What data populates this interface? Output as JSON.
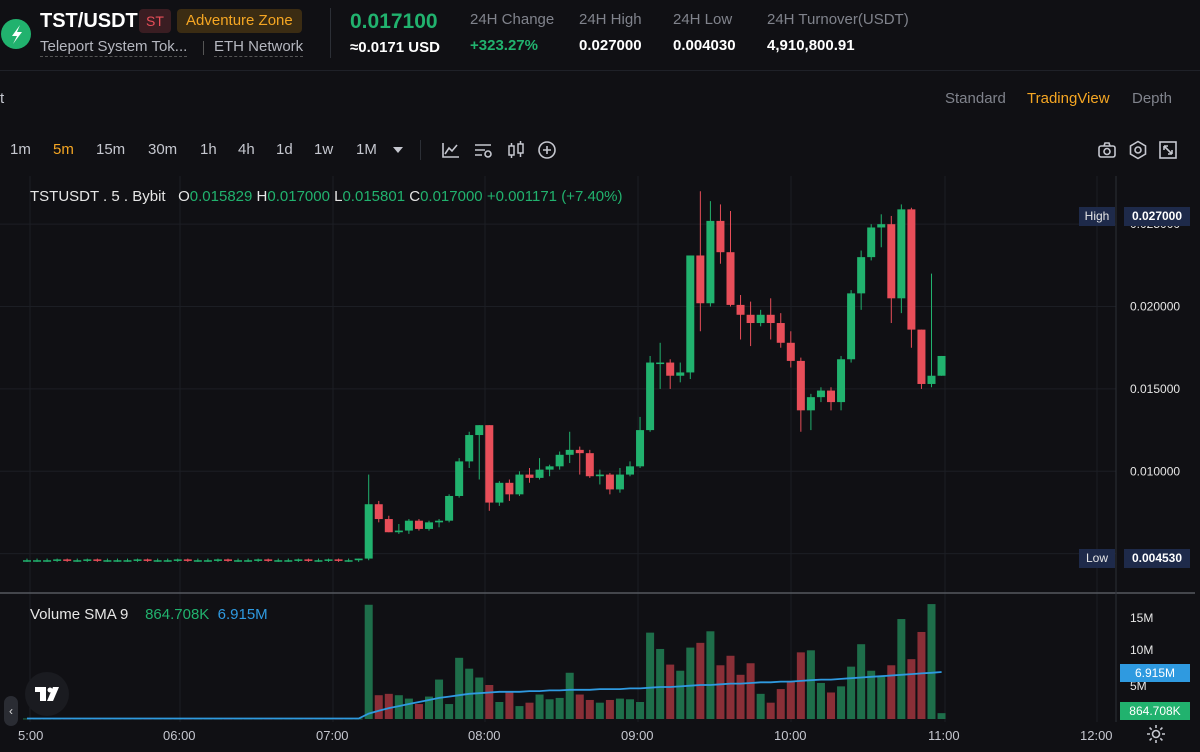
{
  "header": {
    "pair": "TST/USDT",
    "symbol_badge": "ST",
    "zone_badge": "Adventure Zone",
    "full_name": "Teleport System Tok...",
    "network": "ETH Network",
    "last_price": "0.017100",
    "usd_price": "≈0.0171 USD",
    "stats": [
      {
        "label": "24H Change",
        "value": "+323.27%"
      },
      {
        "label": "24H High",
        "value": "0.027000"
      },
      {
        "label": "24H Low",
        "value": "0.004030"
      },
      {
        "label": "24H Turnover(USDT)",
        "value": "4,910,800.91"
      }
    ]
  },
  "panel_left_char": "t",
  "view_tabs": [
    "Standard",
    "TradingView",
    "Depth"
  ],
  "active_view": "TradingView",
  "timeframes": [
    "1m",
    "5m",
    "15m",
    "30m",
    "1h",
    "4h",
    "1d",
    "1w",
    "1M"
  ],
  "active_timeframe": "5m",
  "legend": {
    "symbol": "TSTUSDT . 5 . Bybit",
    "o_label": "O",
    "o": "0.015829",
    "h_label": "H",
    "h": "0.017000",
    "l_label": "L",
    "l": "0.015801",
    "c_label": "C",
    "c": "0.017000",
    "change": "+0.001171 (+7.40%)"
  },
  "volume_legend": {
    "name": "Volume SMA 9",
    "volume": "864.708K",
    "sma": "6.915M"
  },
  "markers": {
    "high_label": "High",
    "high_value": "0.027000",
    "low_label": "Low",
    "low_value": "0.004530"
  },
  "volume_axis": {
    "labels": [
      "15M",
      "10M",
      "5M"
    ],
    "sma_tag": "6.915M",
    "vol_tag": "864.708K"
  },
  "colors": {
    "up": "#21b26e",
    "down": "#e84e59",
    "accent": "#f5a623",
    "sma": "#2f9ae0",
    "bg": "#101014"
  },
  "chart_data": {
    "type": "candlestick",
    "price_axis": {
      "ticks": [
        "0.025000",
        "0.020000",
        "0.015000",
        "0.010000",
        "0.005000"
      ],
      "range": [
        0.0034,
        0.0275
      ]
    },
    "x_tick_labels": [
      "5:00",
      "06:00",
      "07:00",
      "08:00",
      "09:00",
      "10:00",
      "11:00",
      "12:00"
    ],
    "candles": [
      {
        "o": 0.0046,
        "h": 0.0047,
        "l": 0.0045,
        "c": 0.0046
      },
      {
        "o": 0.0046,
        "h": 0.0047,
        "l": 0.0045,
        "c": 0.0046
      },
      {
        "o": 0.0046,
        "h": 0.0047,
        "l": 0.0045,
        "c": 0.0046
      },
      {
        "o": 0.0046,
        "h": 0.0047,
        "l": 0.0045,
        "c": 0.00465
      },
      {
        "o": 0.00465,
        "h": 0.0047,
        "l": 0.0045,
        "c": 0.0046
      },
      {
        "o": 0.0046,
        "h": 0.0047,
        "l": 0.0045,
        "c": 0.0046
      },
      {
        "o": 0.0046,
        "h": 0.0047,
        "l": 0.0045,
        "c": 0.00465
      },
      {
        "o": 0.00465,
        "h": 0.0047,
        "l": 0.0045,
        "c": 0.0046
      },
      {
        "o": 0.0046,
        "h": 0.0047,
        "l": 0.0045,
        "c": 0.0046
      },
      {
        "o": 0.0046,
        "h": 0.0047,
        "l": 0.0045,
        "c": 0.0046
      },
      {
        "o": 0.0046,
        "h": 0.0047,
        "l": 0.0045,
        "c": 0.0046
      },
      {
        "o": 0.0046,
        "h": 0.0047,
        "l": 0.0045,
        "c": 0.00465
      },
      {
        "o": 0.00465,
        "h": 0.0047,
        "l": 0.0045,
        "c": 0.0046
      },
      {
        "o": 0.0046,
        "h": 0.0047,
        "l": 0.0045,
        "c": 0.0046
      },
      {
        "o": 0.0046,
        "h": 0.0047,
        "l": 0.0045,
        "c": 0.0046
      },
      {
        "o": 0.0046,
        "h": 0.0047,
        "l": 0.0045,
        "c": 0.00465
      },
      {
        "o": 0.00465,
        "h": 0.0047,
        "l": 0.0045,
        "c": 0.0046
      },
      {
        "o": 0.0046,
        "h": 0.0047,
        "l": 0.0045,
        "c": 0.0046
      },
      {
        "o": 0.0046,
        "h": 0.0047,
        "l": 0.0045,
        "c": 0.0046
      },
      {
        "o": 0.0046,
        "h": 0.0047,
        "l": 0.0045,
        "c": 0.00465
      },
      {
        "o": 0.00465,
        "h": 0.0047,
        "l": 0.0045,
        "c": 0.0046
      },
      {
        "o": 0.0046,
        "h": 0.0047,
        "l": 0.0045,
        "c": 0.0046
      },
      {
        "o": 0.0046,
        "h": 0.0047,
        "l": 0.0045,
        "c": 0.0046
      },
      {
        "o": 0.0046,
        "h": 0.0047,
        "l": 0.0045,
        "c": 0.00465
      },
      {
        "o": 0.00465,
        "h": 0.0047,
        "l": 0.0045,
        "c": 0.0046
      },
      {
        "o": 0.0046,
        "h": 0.0047,
        "l": 0.0045,
        "c": 0.0046
      },
      {
        "o": 0.0046,
        "h": 0.0047,
        "l": 0.0045,
        "c": 0.0046
      },
      {
        "o": 0.0046,
        "h": 0.0047,
        "l": 0.0045,
        "c": 0.00465
      },
      {
        "o": 0.00465,
        "h": 0.0047,
        "l": 0.0045,
        "c": 0.0046
      },
      {
        "o": 0.0046,
        "h": 0.0047,
        "l": 0.0045,
        "c": 0.0046
      },
      {
        "o": 0.0046,
        "h": 0.0047,
        "l": 0.0045,
        "c": 0.00465
      },
      {
        "o": 0.00465,
        "h": 0.0047,
        "l": 0.0045,
        "c": 0.0046
      },
      {
        "o": 0.0046,
        "h": 0.0047,
        "l": 0.0045,
        "c": 0.0046
      },
      {
        "o": 0.0046,
        "h": 0.0047,
        "l": 0.0045,
        "c": 0.0047
      },
      {
        "o": 0.0047,
        "h": 0.0098,
        "l": 0.0046,
        "c": 0.008
      },
      {
        "o": 0.008,
        "h": 0.0082,
        "l": 0.0069,
        "c": 0.0071
      },
      {
        "o": 0.0071,
        "h": 0.0073,
        "l": 0.0063,
        "c": 0.0063
      },
      {
        "o": 0.0063,
        "h": 0.0068,
        "l": 0.0062,
        "c": 0.0064
      },
      {
        "o": 0.0064,
        "h": 0.0071,
        "l": 0.0062,
        "c": 0.007
      },
      {
        "o": 0.007,
        "h": 0.0071,
        "l": 0.0064,
        "c": 0.0065
      },
      {
        "o": 0.0065,
        "h": 0.007,
        "l": 0.0064,
        "c": 0.0069
      },
      {
        "o": 0.0069,
        "h": 0.0071,
        "l": 0.0066,
        "c": 0.007
      },
      {
        "o": 0.007,
        "h": 0.0086,
        "l": 0.0069,
        "c": 0.0085
      },
      {
        "o": 0.0085,
        "h": 0.0108,
        "l": 0.0084,
        "c": 0.0106
      },
      {
        "o": 0.0106,
        "h": 0.0124,
        "l": 0.0102,
        "c": 0.0122
      },
      {
        "o": 0.0122,
        "h": 0.0128,
        "l": 0.0095,
        "c": 0.0128
      },
      {
        "o": 0.0128,
        "h": 0.0128,
        "l": 0.0076,
        "c": 0.0081
      },
      {
        "o": 0.0081,
        "h": 0.0094,
        "l": 0.0079,
        "c": 0.0093
      },
      {
        "o": 0.0093,
        "h": 0.0095,
        "l": 0.0082,
        "c": 0.0086
      },
      {
        "o": 0.0086,
        "h": 0.01,
        "l": 0.0085,
        "c": 0.0098
      },
      {
        "o": 0.0098,
        "h": 0.0102,
        "l": 0.0093,
        "c": 0.0096
      },
      {
        "o": 0.0096,
        "h": 0.0108,
        "l": 0.0095,
        "c": 0.0101
      },
      {
        "o": 0.0101,
        "h": 0.0104,
        "l": 0.0097,
        "c": 0.0103
      },
      {
        "o": 0.0103,
        "h": 0.0112,
        "l": 0.0101,
        "c": 0.011
      },
      {
        "o": 0.011,
        "h": 0.0124,
        "l": 0.0105,
        "c": 0.0113
      },
      {
        "o": 0.0113,
        "h": 0.0115,
        "l": 0.0098,
        "c": 0.0111
      },
      {
        "o": 0.0111,
        "h": 0.0113,
        "l": 0.0096,
        "c": 0.0097
      },
      {
        "o": 0.0097,
        "h": 0.0101,
        "l": 0.0092,
        "c": 0.0098
      },
      {
        "o": 0.0098,
        "h": 0.0099,
        "l": 0.0086,
        "c": 0.0089
      },
      {
        "o": 0.0089,
        "h": 0.0102,
        "l": 0.0087,
        "c": 0.0098
      },
      {
        "o": 0.0098,
        "h": 0.0106,
        "l": 0.0097,
        "c": 0.0103
      },
      {
        "o": 0.0103,
        "h": 0.0133,
        "l": 0.0102,
        "c": 0.0125
      },
      {
        "o": 0.0125,
        "h": 0.017,
        "l": 0.0124,
        "c": 0.0166
      },
      {
        "o": 0.0166,
        "h": 0.0178,
        "l": 0.015,
        "c": 0.0166
      },
      {
        "o": 0.0166,
        "h": 0.0168,
        "l": 0.015,
        "c": 0.0158
      },
      {
        "o": 0.0158,
        "h": 0.0166,
        "l": 0.0154,
        "c": 0.016
      },
      {
        "o": 0.016,
        "h": 0.0231,
        "l": 0.0156,
        "c": 0.0231
      },
      {
        "o": 0.0231,
        "h": 0.027,
        "l": 0.0185,
        "c": 0.0202
      },
      {
        "o": 0.0202,
        "h": 0.0264,
        "l": 0.02,
        "c": 0.0252
      },
      {
        "o": 0.0252,
        "h": 0.0262,
        "l": 0.0226,
        "c": 0.0233
      },
      {
        "o": 0.0233,
        "h": 0.0258,
        "l": 0.02,
        "c": 0.0201
      },
      {
        "o": 0.0201,
        "h": 0.0207,
        "l": 0.018,
        "c": 0.0195
      },
      {
        "o": 0.0195,
        "h": 0.0203,
        "l": 0.0176,
        "c": 0.019
      },
      {
        "o": 0.019,
        "h": 0.0198,
        "l": 0.0188,
        "c": 0.0195
      },
      {
        "o": 0.0195,
        "h": 0.0205,
        "l": 0.018,
        "c": 0.019
      },
      {
        "o": 0.019,
        "h": 0.0196,
        "l": 0.0175,
        "c": 0.0178
      },
      {
        "o": 0.0178,
        "h": 0.0185,
        "l": 0.0163,
        "c": 0.0167
      },
      {
        "o": 0.0167,
        "h": 0.0169,
        "l": 0.0124,
        "c": 0.0137
      },
      {
        "o": 0.0137,
        "h": 0.0147,
        "l": 0.0125,
        "c": 0.0145
      },
      {
        "o": 0.0145,
        "h": 0.0151,
        "l": 0.0142,
        "c": 0.0149
      },
      {
        "o": 0.0149,
        "h": 0.0151,
        "l": 0.0137,
        "c": 0.0142
      },
      {
        "o": 0.0142,
        "h": 0.017,
        "l": 0.0137,
        "c": 0.0168
      },
      {
        "o": 0.0168,
        "h": 0.021,
        "l": 0.0166,
        "c": 0.0208
      },
      {
        "o": 0.0208,
        "h": 0.0234,
        "l": 0.0198,
        "c": 0.023
      },
      {
        "o": 0.023,
        "h": 0.025,
        "l": 0.0228,
        "c": 0.0248
      },
      {
        "o": 0.0248,
        "h": 0.0256,
        "l": 0.0236,
        "c": 0.025
      },
      {
        "o": 0.025,
        "h": 0.0255,
        "l": 0.019,
        "c": 0.0205
      },
      {
        "o": 0.0205,
        "h": 0.0262,
        "l": 0.0196,
        "c": 0.0259
      },
      {
        "o": 0.0259,
        "h": 0.026,
        "l": 0.0175,
        "c": 0.0186
      },
      {
        "o": 0.0186,
        "h": 0.0186,
        "l": 0.015,
        "c": 0.0153
      },
      {
        "o": 0.0153,
        "h": 0.022,
        "l": 0.0151,
        "c": 0.0158
      },
      {
        "o": 0.0158,
        "h": 0.017,
        "l": 0.0158,
        "c": 0.017
      }
    ],
    "volumes": [
      0.08,
      0.08,
      0.08,
      0.08,
      0.08,
      0.08,
      0.08,
      0.08,
      0.08,
      0.08,
      0.08,
      0.08,
      0.08,
      0.08,
      0.08,
      0.08,
      0.08,
      0.08,
      0.08,
      0.08,
      0.08,
      0.08,
      0.08,
      0.08,
      0.08,
      0.08,
      0.08,
      0.08,
      0.08,
      0.08,
      0.08,
      0.08,
      0.08,
      0.08,
      16.8,
      3.5,
      3.7,
      3.5,
      3.0,
      2.2,
      3.3,
      5.8,
      2.2,
      9.0,
      7.4,
      6.1,
      5.0,
      2.5,
      3.9,
      1.9,
      2.4,
      3.6,
      2.9,
      3.1,
      6.8,
      3.6,
      2.8,
      2.4,
      2.8,
      3.0,
      2.9,
      2.5,
      12.7,
      10.3,
      8.0,
      7.1,
      10.5,
      11.2,
      12.9,
      7.9,
      9.3,
      6.5,
      8.2,
      3.7,
      2.4,
      4.4,
      5.6,
      9.8,
      10.1,
      5.3,
      3.9,
      4.8,
      7.7,
      11.0,
      7.1,
      6.2,
      7.9,
      14.7,
      8.8,
      12.8,
      16.9,
      0.86
    ],
    "volume_axis_range": [
      0,
      17.5
    ],
    "sma9": [
      0.08,
      0.08,
      0.08,
      0.08,
      0.08,
      0.08,
      0.08,
      0.08,
      0.08,
      0.08,
      0.08,
      0.08,
      0.08,
      0.08,
      0.08,
      0.08,
      0.08,
      0.08,
      0.08,
      0.08,
      0.08,
      0.08,
      0.08,
      0.08,
      0.08,
      0.08,
      0.08,
      0.08,
      0.08,
      0.08,
      0.08,
      0.08,
      0.08,
      0.08,
      0.8,
      1.2,
      1.6,
      1.9,
      2.2,
      2.5,
      2.8,
      3.1,
      3.3,
      3.5,
      3.7,
      3.8,
      3.9,
      4.0,
      4.0,
      4.0,
      4.1,
      4.1,
      4.2,
      4.2,
      4.3,
      4.3,
      4.3,
      4.4,
      4.4,
      4.4,
      4.5,
      4.5,
      4.6,
      4.7,
      4.7,
      4.8,
      4.9,
      5.0,
      5.0,
      5.1,
      5.2,
      5.2,
      5.3,
      5.4,
      5.4,
      5.5,
      5.5,
      5.6,
      5.7,
      5.8,
      5.8,
      5.9,
      6.0,
      6.1,
      6.2,
      6.3,
      6.4,
      6.5,
      6.6,
      6.7,
      6.8,
      6.915
    ]
  }
}
